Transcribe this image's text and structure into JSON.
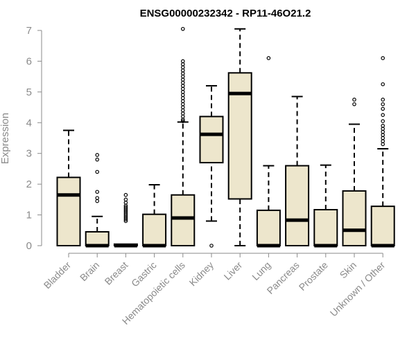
{
  "chart_data": {
    "type": "boxplot",
    "title": "ENSG00000232342 - RP11-46O21.2",
    "xlabel": "",
    "ylabel": "Expression",
    "ylim": [
      0,
      7
    ],
    "yticks": [
      0,
      1,
      2,
      3,
      4,
      5,
      6,
      7
    ],
    "grid": false,
    "legend": "none",
    "box_fill": "#ede6cc",
    "box_stroke": "#000000",
    "outlier_stroke": "#000000",
    "axis_color": "#8a8a8a",
    "categories": [
      "Bladder",
      "Brain",
      "Breast",
      "Gastric",
      "Hematopoietic cells",
      "Kidney",
      "Liver",
      "Lung",
      "Pancreas",
      "Prostate",
      "Skin",
      "Unknown / Other"
    ],
    "boxes": [
      {
        "name": "Bladder",
        "whisker_low": 0,
        "q1": 0,
        "median": 1.65,
        "q3": 2.22,
        "whisker_high": 3.75,
        "outliers": []
      },
      {
        "name": "Brain",
        "whisker_low": 0,
        "q1": 0,
        "median": 0,
        "q3": 0.45,
        "whisker_high": 0.95,
        "outliers": [
          1.45,
          1.55,
          1.75,
          2.4,
          2.8,
          2.95
        ]
      },
      {
        "name": "Breast",
        "whisker_low": 0,
        "q1": 0,
        "median": 0,
        "q3": 0.05,
        "whisker_high": 0.05,
        "outliers": [
          0.8,
          0.85,
          0.9,
          0.95,
          1.0,
          1.05,
          1.1,
          1.15,
          1.2,
          1.25,
          1.3,
          1.4,
          1.5,
          1.65
        ]
      },
      {
        "name": "Gastric",
        "whisker_low": 0,
        "q1": 0,
        "median": 0,
        "q3": 1.02,
        "whisker_high": 1.98,
        "outliers": []
      },
      {
        "name": "Hematopoietic cells",
        "whisker_low": 0,
        "q1": 0,
        "median": 0.9,
        "q3": 1.65,
        "whisker_high": 4.02,
        "outliers": [
          4.05,
          4.1,
          4.2,
          4.3,
          4.4,
          4.5,
          4.6,
          4.7,
          4.8,
          4.9,
          5.0,
          5.1,
          5.2,
          5.3,
          5.4,
          5.5,
          5.6,
          5.7,
          5.8,
          5.9,
          6.0,
          7.05
        ]
      },
      {
        "name": "Kidney",
        "whisker_low": 0.8,
        "q1": 2.7,
        "median": 3.62,
        "q3": 4.2,
        "whisker_high": 5.2,
        "outliers": [
          0
        ]
      },
      {
        "name": "Liver",
        "whisker_low": 0,
        "q1": 1.52,
        "median": 4.95,
        "q3": 5.62,
        "whisker_high": 7.05,
        "outliers": []
      },
      {
        "name": "Lung",
        "whisker_low": 0,
        "q1": 0,
        "median": 0,
        "q3": 1.15,
        "whisker_high": 2.6,
        "outliers": [
          6.1
        ]
      },
      {
        "name": "Pancreas",
        "whisker_low": 0,
        "q1": 0,
        "median": 0.83,
        "q3": 2.6,
        "whisker_high": 4.85,
        "outliers": []
      },
      {
        "name": "Prostate",
        "whisker_low": 0,
        "q1": 0,
        "median": 0,
        "q3": 1.17,
        "whisker_high": 2.62,
        "outliers": []
      },
      {
        "name": "Skin",
        "whisker_low": 0,
        "q1": 0,
        "median": 0.5,
        "q3": 1.78,
        "whisker_high": 3.95,
        "outliers": [
          4.6,
          4.75
        ]
      },
      {
        "name": "Unknown / Other",
        "whisker_low": 0,
        "q1": 0,
        "median": 0,
        "q3": 1.28,
        "whisker_high": 3.15,
        "outliers": [
          3.3,
          3.4,
          3.5,
          3.6,
          3.7,
          3.8,
          3.9,
          4.05,
          4.25,
          4.45,
          4.6,
          4.75,
          5.25,
          6.1
        ]
      }
    ]
  }
}
